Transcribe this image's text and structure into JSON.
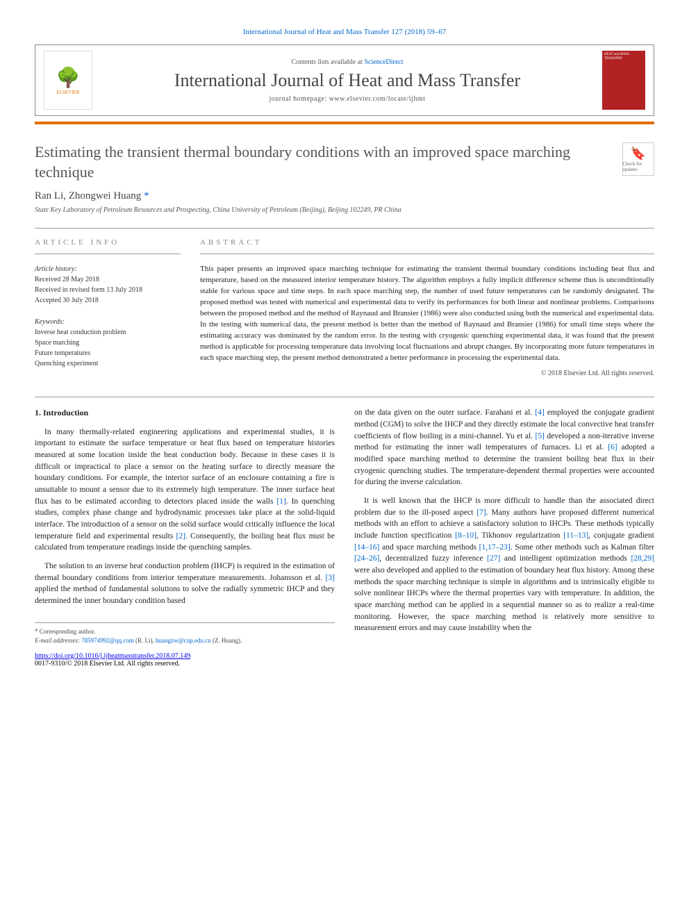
{
  "journal_ref": "International Journal of Heat and Mass Transfer 127 (2018) 59–67",
  "header": {
    "contents_prefix": "Contents lists available at ",
    "contents_link": "ScienceDirect",
    "journal_title": "International Journal of Heat and Mass Transfer",
    "homepage_prefix": "journal homepage: ",
    "homepage_url": "www.elsevier.com/locate/ijhmt",
    "publisher_name": "ELSEVIER",
    "cover_text": "HEAT and MASS TRANSFER"
  },
  "colors": {
    "accent_orange": "#e06e00",
    "link_blue": "#0066cc",
    "cover_red": "#b22222",
    "title_grey": "#545454",
    "text": "#222222"
  },
  "article": {
    "title": "Estimating the transient thermal boundary conditions with an improved space marching technique",
    "badge_text": "Check for updates",
    "authors_html": "Ran Li, Zhongwei Huang",
    "author1": "Ran Li",
    "author2": "Zhongwei Huang",
    "corr_marker": "*",
    "affiliation": "State Key Laboratory of Petroleum Resources and Prospecting, China University of Petroleum (Beijing), Beijing 102249, PR China"
  },
  "info": {
    "label": "article info",
    "history_heading": "Article history:",
    "received": "Received 28 May 2018",
    "revised": "Received in revised form 13 July 2018",
    "accepted": "Accepted 30 July 2018",
    "keywords_heading": "Keywords:",
    "keywords": [
      "Inverse heat conduction problem",
      "Space marching",
      "Future temperatures",
      "Quenching experiment"
    ]
  },
  "abstract": {
    "label": "abstract",
    "text": "This paper presents an improved space marching technique for estimating the transient thermal boundary conditions including heat flux and temperature, based on the measured interior temperature history. The algorithm employs a fully implicit difference scheme thus is unconditionally stable for various space and time steps. In each space marching step, the number of used future temperatures can be randomly designated. The proposed method was tested with numerical and experimental data to verify its performances for both linear and nonlinear problems. Comparisons between the proposed method and the method of Raynaud and Bransier (1986) were also conducted using both the numerical and experimental data. In the testing with numerical data, the present method is better than the method of Raynaud and Bransier (1986) for small time steps where the estimating accuracy was dominated by the random error. In the testing with cryogenic quenching experimental data, it was found that the present method is applicable for processing temperature data involving local fluctuations and abrupt changes. By incorporating more future temperatures in each space marching step, the present method demonstrated a better performance in processing the experimental data.",
    "copyright": "© 2018 Elsevier Ltd. All rights reserved."
  },
  "body": {
    "section_num": "1.",
    "section_title": "Introduction",
    "col1": {
      "p1": "In many thermally-related engineering applications and experimental studies, it is important to estimate the surface temperature or heat flux based on temperature histories measured at some location inside the heat conduction body. Because in these cases it is difficult or impractical to place a sensor on the heating surface to directly measure the boundary conditions. For example, the interior surface of an enclosure containing a fire is unsuitable to mount a sensor due to its extremely high temperature. The inner surface heat flux has to be estimated according to detectors placed inside the walls [1]. In quenching studies, complex phase change and hydrodynamic processes take place at the solid-liquid interface. The introduction of a sensor on the solid surface would critically influence the local temperature field and experimental results [2]. Consequently, the boiling heat flux must be calculated from temperature readings inside the quenching samples.",
      "p2": "The solution to an inverse heat conduction problem (IHCP) is required in the estimation of thermal boundary conditions from interior temperature measurements. Johansson et al. [3] applied the method of fundamental solutions to solve the radially symmetric IHCP and they determined the inner boundary condition based"
    },
    "col2": {
      "p1": "on the data given on the outer surface. Farahani et al. [4] employed the conjugate gradient method (CGM) to solve the IHCP and they directly estimate the local convective heat transfer coefficients of flow boiling in a mini-channel. Yu et al. [5] developed a non-iterative inverse method for estimating the inner wall temperatures of furnaces. Li et al. [6] adopted a modified space marching method to determine the transient boiling heat flux in their cryogenic quenching studies. The temperature-dependent thermal properties were accounted for during the inverse calculation.",
      "p2": "It is well known that the IHCP is more difficult to handle than the associated direct problem due to the ill-posed aspect [7]. Many authors have proposed different numerical methods with an effort to achieve a satisfactory solution to IHCPs. These methods typically include function specification [8–10], Tikhonov regularization [11–13], conjugate gradient [14–16] and space marching methods [1,17–23]. Some other methods such as Kalman filter [24–26], decentralized fuzzy inference [27] and intelligent optimization methods [28,29] were also developed and applied to the estimation of boundary heat flux history. Among these methods the space marching technique is simple in algorithms and is intrinsically eligible to solve nonlinear IHCPs where the thermal properties vary with temperature. In addition, the space marching method can be applied in a sequential manner so as to realize a real-time monitoring. However, the space marching method is relatively more sensitive to measurement errors and may cause instability when the"
    },
    "refs": {
      "r1": "[1]",
      "r2": "[2]",
      "r3": "[3]",
      "r4": "[4]",
      "r5": "[5]",
      "r6": "[6]",
      "r7": "[7]",
      "r8_10": "[8–10]",
      "r11_13": "[11–13]",
      "r14_16": "[14–16]",
      "r1_17_23": "[1,17–23]",
      "r24_26": "[24–26]",
      "r27": "[27]",
      "r28_29": "[28,29]"
    }
  },
  "footer": {
    "corr_label": "* Corresponding author.",
    "email_label": "E-mail addresses:",
    "email1": "785974992@qq.com",
    "email1_name": "(R. Li),",
    "email2": "huangzw@cup.edu.cn",
    "email2_name": "(Z. Huang).",
    "doi": "https://doi.org/10.1016/j.ijheatmasstransfer.2018.07.149",
    "issn_line": "0017-9310/© 2018 Elsevier Ltd. All rights reserved."
  }
}
